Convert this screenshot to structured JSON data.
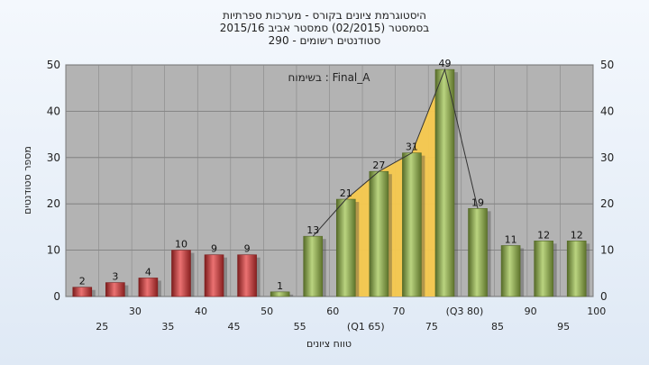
{
  "chart_data": {
    "type": "bar",
    "title_lines": [
      "היסטוגרמת ציונים בקורס - מערכות ספרתיות",
      "בסמסטר  (02/2015)  סמסטר אביב 2015/16",
      "סטודנטים רשומים - 290"
    ],
    "annotation": "בשימוח : Final_A",
    "xlabel": "טווח ציונים",
    "ylabel": "מספר סטודנטים",
    "ylim": [
      0,
      50
    ],
    "yticks": [
      0,
      10,
      20,
      30,
      40,
      50
    ],
    "grid": true,
    "categories": [
      "25",
      "30",
      "35",
      "40",
      "45",
      "50",
      "55",
      "60",
      "(Q1 65)",
      "70",
      "75",
      "(Q3 80)",
      "85",
      "90",
      "95",
      "100"
    ],
    "values": [
      2,
      3,
      4,
      10,
      9,
      9,
      1,
      13,
      21,
      27,
      31,
      49,
      19,
      11,
      12,
      12
    ],
    "bar_colors": [
      "#e23535",
      "#e23535",
      "#e23535",
      "#e23535",
      "#e23535",
      "#e23535",
      "#9dc24a",
      "#9dc24a",
      "#9dc24a",
      "#9dc24a",
      "#9dc24a",
      "#9dc24a",
      "#9dc24a",
      "#9dc24a",
      "#9dc24a",
      "#9dc24a"
    ],
    "highlight": {
      "from_index": 8,
      "to_index": 11,
      "color": "#f7c94e"
    },
    "plot_background": "#b3b3b3"
  }
}
